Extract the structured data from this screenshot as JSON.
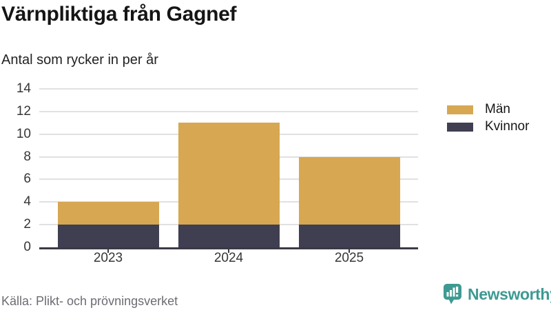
{
  "chart_data": {
    "type": "bar",
    "stacked": true,
    "title": "Värnpliktiga från Gagnef",
    "subtitle": "Antal som rycker in per år",
    "categories": [
      "2023",
      "2024",
      "2025"
    ],
    "series": [
      {
        "name": "Kvinnor",
        "color": "#403e51",
        "values": [
          2,
          2,
          2
        ]
      },
      {
        "name": "Män",
        "color": "#d7a751",
        "values": [
          2,
          9,
          6
        ]
      }
    ],
    "stacked_totals": [
      4,
      11,
      8
    ],
    "ylim": [
      0,
      14
    ],
    "yticks": [
      0,
      2,
      4,
      6,
      8,
      10,
      12,
      14
    ],
    "xlabel": "",
    "ylabel": "",
    "grid": true,
    "legend_position": "right",
    "legend_labels": [
      "Män",
      "Kvinnor"
    ]
  },
  "footer": {
    "source": "Källa: Plikt- och prövningsverket",
    "brand": "Newsworthy",
    "brand_color": "#3d9a92",
    "logo_icon": "bar-chart-speech-bubble-icon"
  }
}
